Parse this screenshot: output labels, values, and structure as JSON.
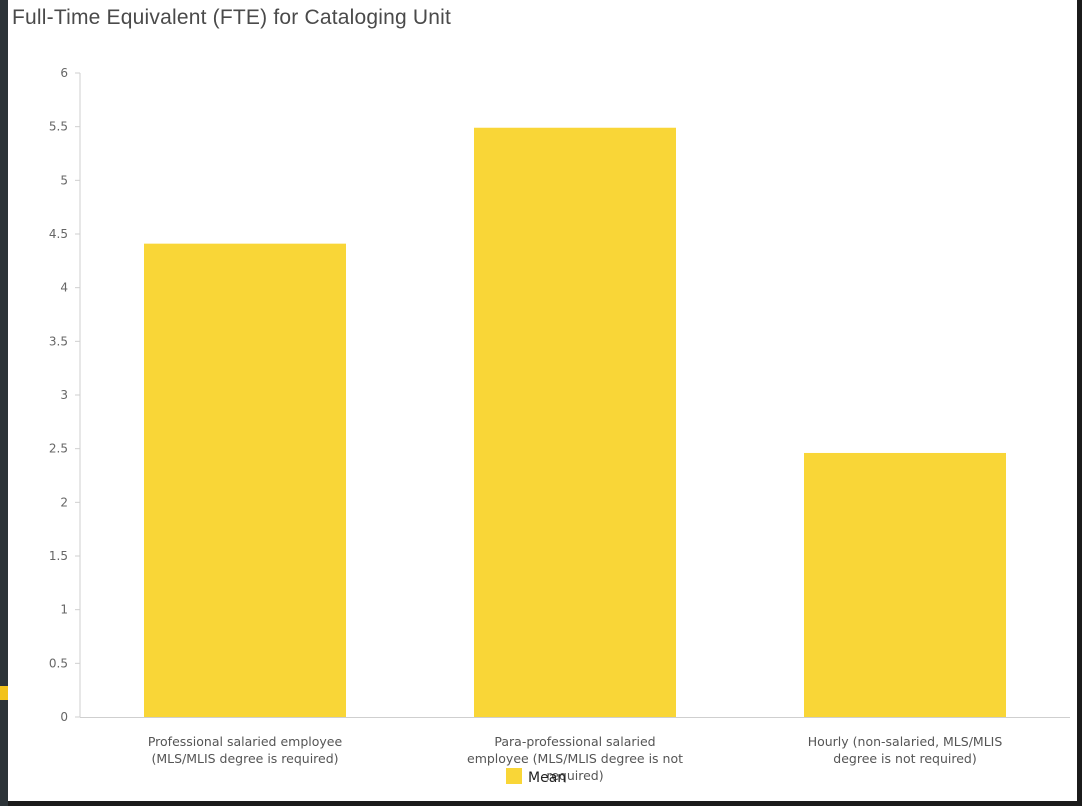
{
  "chart_data": {
    "type": "bar",
    "title": "Full-Time Equivalent (FTE) for Cataloging Unit",
    "xlabel": "",
    "ylabel": "",
    "ylim": [
      0,
      6
    ],
    "yticks": [
      "0",
      "0.5",
      "1",
      "1.5",
      "2",
      "2.5",
      "3",
      "3.5",
      "4",
      "4.5",
      "5",
      "5.5",
      "6"
    ],
    "categories": [
      [
        "Professional salaried employee",
        "(MLS/MLIS degree is required)"
      ],
      [
        "Para-professional salaried",
        "employee (MLS/MLIS degree is not",
        "required)"
      ],
      [
        "Hourly (non-salaried, MLS/MLIS",
        "degree is not required)"
      ]
    ],
    "series": [
      {
        "name": "Mean",
        "values": [
          4.41,
          5.49,
          2.46
        ],
        "color": "#f9d637"
      }
    ],
    "grid": false,
    "legend_position": "bottom"
  },
  "colors": {
    "bar": "#f9d637",
    "axis": "#cfcfcf",
    "frame": "#1b1b1b"
  }
}
